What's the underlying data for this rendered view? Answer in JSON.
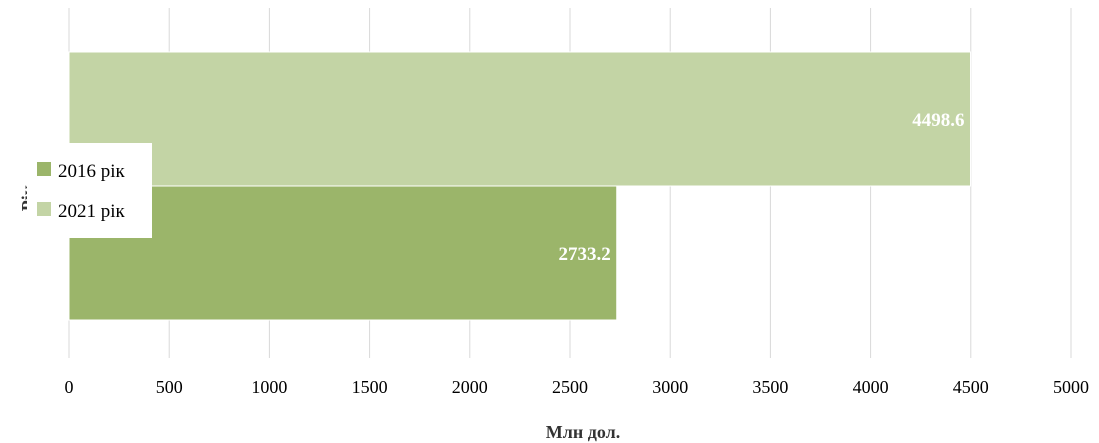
{
  "chart_data": {
    "type": "bar",
    "orientation": "horizontal",
    "title": "",
    "xlabel": "Млн дол.",
    "ylabel": "Рік",
    "xlim": [
      0,
      5000
    ],
    "xticks": [
      "0",
      "500",
      "1000",
      "1500",
      "2000",
      "2500",
      "3000",
      "3500",
      "4000",
      "4500",
      "5000"
    ],
    "grid": true,
    "legend_position": "left",
    "series": [
      {
        "name": "2016 рік",
        "values": [
          2733.2
        ],
        "labels": [
          "2733.2"
        ],
        "color": "#9bb56a"
      },
      {
        "name": "2021 рік",
        "values": [
          4498.6
        ],
        "labels": [
          "4498.6"
        ],
        "color": "#c3d4a5"
      }
    ]
  }
}
